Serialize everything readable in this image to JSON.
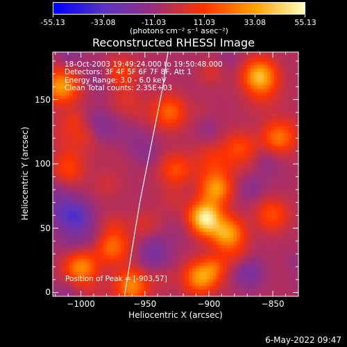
{
  "colorbar": {
    "tick_labels": [
      "-55.13",
      "-33.08",
      "-11.03",
      "11.03",
      "33.08",
      "55.13"
    ],
    "tick_values": [
      -55.13,
      -33.08,
      -11.03,
      11.03,
      33.08,
      55.13
    ],
    "units": "(photons cm⁻² s⁻¹ asec⁻²)",
    "range": [
      -55.13,
      55.13
    ]
  },
  "title": "Reconstructed RHESSI Image",
  "info": {
    "line1": "18-Oct-2003 19:49:24.000 to 19:50:48.000",
    "line2": "Detectors: 3F 4F 5F 6F 7F 8F, Att 1",
    "line3": "Energy Range: 3.0 - 6.0 keV",
    "line4": "Clean     Total counts: 2.35E+03"
  },
  "peak_label": "Position of Peak = [-903,57]",
  "timestamp": "6-May-2022 09:47",
  "chart_data": {
    "type": "heatmap",
    "title": "Reconstructed RHESSI Image",
    "xlabel": "Heliocentric X (arcsec)",
    "ylabel": "Heliocentric Y (arcsec)",
    "xlim": [
      -1022,
      -830
    ],
    "ylim": [
      -3,
      187
    ],
    "x_ticks": [
      -1000,
      -950,
      -900,
      -850
    ],
    "x_tick_labels": [
      "−1000",
      "−950",
      "−900",
      "−850"
    ],
    "y_ticks": [
      0,
      50,
      100,
      150
    ],
    "y_tick_labels": [
      "0",
      "50",
      "100",
      "150"
    ],
    "peak": [
      -903,
      57
    ],
    "colormap": [
      "#0000ff",
      "#5a34c2",
      "#9a2f7c",
      "#ff3300",
      "#ffa000",
      "#ffffc0"
    ],
    "sources": [
      {
        "x": -903,
        "y": 57,
        "value": 55.13
      },
      {
        "x": -885,
        "y": 45,
        "value": 40
      },
      {
        "x": -895,
        "y": 80,
        "value": 34
      },
      {
        "x": -875,
        "y": 110,
        "value": 30
      },
      {
        "x": -860,
        "y": 168,
        "value": 44
      },
      {
        "x": -845,
        "y": 120,
        "value": 30
      },
      {
        "x": -1015,
        "y": 160,
        "value": 38
      },
      {
        "x": -1010,
        "y": 95,
        "value": 20
      },
      {
        "x": -1000,
        "y": 20,
        "value": 36
      },
      {
        "x": -975,
        "y": 35,
        "value": 28
      },
      {
        "x": -960,
        "y": 5,
        "value": 34
      },
      {
        "x": -930,
        "y": 140,
        "value": 26
      },
      {
        "x": -970,
        "y": 170,
        "value": 22
      },
      {
        "x": -905,
        "y": 12,
        "value": 34
      },
      {
        "x": -925,
        "y": 95,
        "value": 22
      },
      {
        "x": -850,
        "y": 60,
        "value": 22
      },
      {
        "x": -940,
        "y": 30,
        "value": -22
      },
      {
        "x": -1005,
        "y": 60,
        "value": -18
      },
      {
        "x": -950,
        "y": 110,
        "value": -14
      },
      {
        "x": -870,
        "y": 15,
        "value": -18
      },
      {
        "x": -985,
        "y": 130,
        "value": -12
      }
    ],
    "limb_curve": {
      "x": [
        -932,
        -936,
        -942,
        -948,
        -954,
        -959,
        -963,
        -966
      ],
      "y": [
        187,
        160,
        130,
        100,
        70,
        40,
        15,
        -3
      ]
    }
  }
}
